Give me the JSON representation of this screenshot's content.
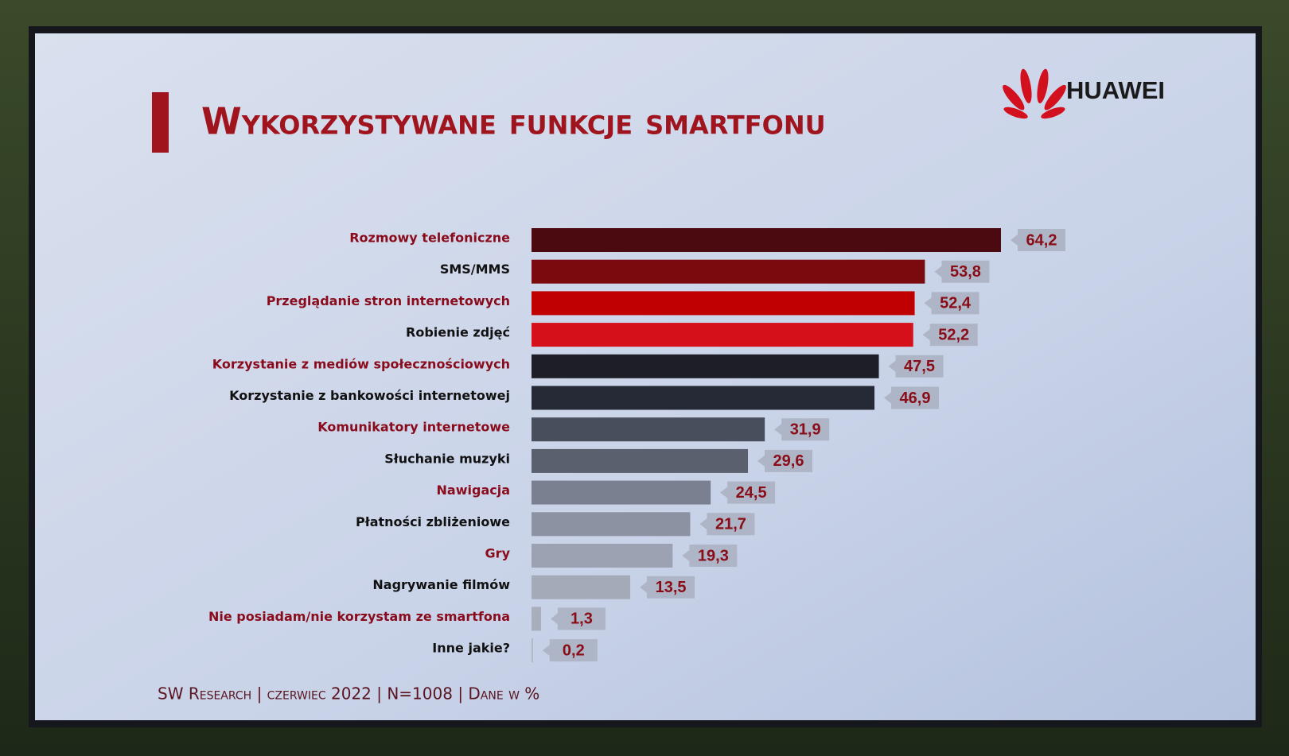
{
  "brand": "HUAWEI",
  "chart_data": {
    "type": "hbar",
    "title": "Wykorzystywane funkcje smartfonu",
    "categories": [
      "Rozmowy telefoniczne",
      "SMS/MMS",
      "Przeglądanie stron internetowych",
      "Robienie zdjęć",
      "Korzystanie z mediów społecznościowych",
      "Korzystanie z bankowości internetowej",
      "Komunikatory internetowe",
      "Słuchanie muzyki",
      "Nawigacja",
      "Płatności zbliżeniowe",
      "Gry",
      "Nagrywanie filmów",
      "Nie posiadam/nie korzystam ze smartfona",
      "Inne jakie?"
    ],
    "values": [
      64.2,
      53.8,
      52.4,
      52.2,
      47.5,
      46.9,
      31.9,
      29.6,
      24.5,
      21.7,
      19.3,
      13.5,
      1.3,
      0.2
    ],
    "value_labels": [
      "64,2",
      "53,8",
      "52,4",
      "52,2",
      "47,5",
      "46,9",
      "31,9",
      "29,6",
      "24,5",
      "21,7",
      "19,3",
      "13,5",
      "1,3",
      "0,2"
    ],
    "colors": [
      "#4a0a10",
      "#7a0a0e",
      "#c00000",
      "#d6101a",
      "#1e1e28",
      "#262a36",
      "#484e5c",
      "#5a606e",
      "#7a8090",
      "#8c92a2",
      "#9ca2b2",
      "#a4aab8",
      "#a8aebc",
      "#b0b6c4"
    ],
    "source": "SW Research | czerwiec 2022 | N=1008 | Dane w %"
  }
}
